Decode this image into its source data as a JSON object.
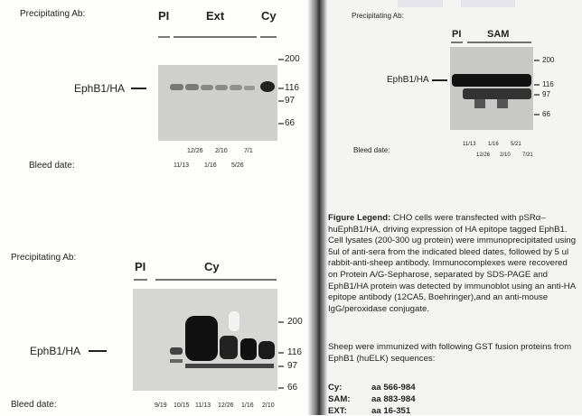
{
  "panels": [
    {
      "precipitating_label": "Precipitating Ab:",
      "groups": [
        "PI",
        "Ext",
        "Cy"
      ],
      "protein": "EphB1/HA",
      "markers": [
        "200",
        "116",
        "97",
        "66"
      ],
      "bleed_label": "Bleed date:",
      "dates_top": [
        "12/26",
        "2/10",
        "7/1"
      ],
      "dates_bottom": [
        "11/13",
        "1/16",
        "5/26"
      ]
    },
    {
      "precipitating_label": "Precipitating Ab:",
      "groups": [
        "PI",
        "Cy"
      ],
      "protein": "EphB1/HA",
      "markers": [
        "200",
        "116",
        "97",
        "66"
      ],
      "bleed_label": "Bleed date:",
      "dates": [
        "9/19",
        "10/15",
        "11/13",
        "12/26",
        "1/16",
        "2/10"
      ]
    },
    {
      "precipitating_label": "Precipitating Ab:",
      "groups": [
        "PI",
        "SAM"
      ],
      "protein": "EphB1/HA",
      "markers": [
        "200",
        "116",
        "97",
        "66"
      ],
      "bleed_label": "Bleed date:",
      "dates_top": [
        "11/13",
        "1/16",
        "5/21"
      ],
      "dates_bottom": [
        "12/26",
        "2/10",
        "7/21"
      ]
    }
  ],
  "legend": {
    "title": "Figure Legend:",
    "text": "CHO cells were transfected with pSRα–huEphB1/HA, driving expression of HA epitope tagged EphB1. Cell lysates (200-300 ug protein) were immunoprecipitated using 5ul of anti-sera from the indicated bleed dates, followed by 5 ul rabbit-anti-sheep antibody. Immunocomplexes were recovered on Protein A/G-Sepharose, separated by SDS-PAGE and EphB1/HA protein was detected by immunoblot using an anti-HA epitope antibody (12CA5, Boehringer),and an anti-mouse IgG/peroxidase conjugate."
  },
  "immunogen_intro": "Sheep were immunized with following GST fusion proteins from EphB1 (huELK) sequences:",
  "immunogens": [
    [
      "Cy:",
      "aa 566-984"
    ],
    [
      "SAM:",
      "aa 883-984"
    ],
    [
      "EXT:",
      "aa 16-351"
    ]
  ]
}
